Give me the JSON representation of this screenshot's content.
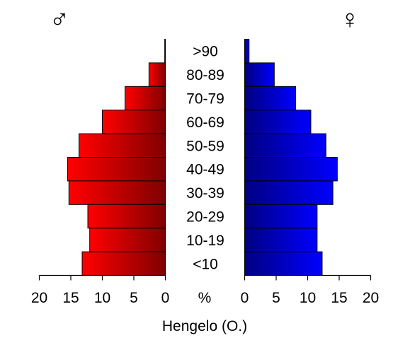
{
  "chart_data": {
    "type": "bar",
    "orientation": "horizontal",
    "subtype": "population-pyramid",
    "title": "Hengelo (O.)",
    "categories": [
      ">90",
      "80-89",
      "70-79",
      "60-69",
      "50-59",
      "40-49",
      "30-39",
      "20-29",
      "10-19",
      "<10"
    ],
    "series": [
      {
        "name": "♂",
        "side": "left",
        "color": "#ff0000",
        "values": [
          0.1,
          2.6,
          6.4,
          10.0,
          13.7,
          15.5,
          15.3,
          12.3,
          12.0,
          13.2
        ]
      },
      {
        "name": "♀",
        "side": "right",
        "color": "#0000ff",
        "values": [
          0.7,
          4.7,
          8.1,
          10.5,
          12.9,
          14.7,
          14.0,
          11.5,
          11.5,
          12.3
        ]
      }
    ],
    "xlim": [
      0,
      20
    ],
    "xticks": [
      "20",
      "15",
      "10",
      "5",
      "0"
    ],
    "xticks_right": [
      "0",
      "5",
      "10",
      "15",
      "20"
    ],
    "xlabel": "%",
    "grid": false,
    "legend": "none"
  }
}
